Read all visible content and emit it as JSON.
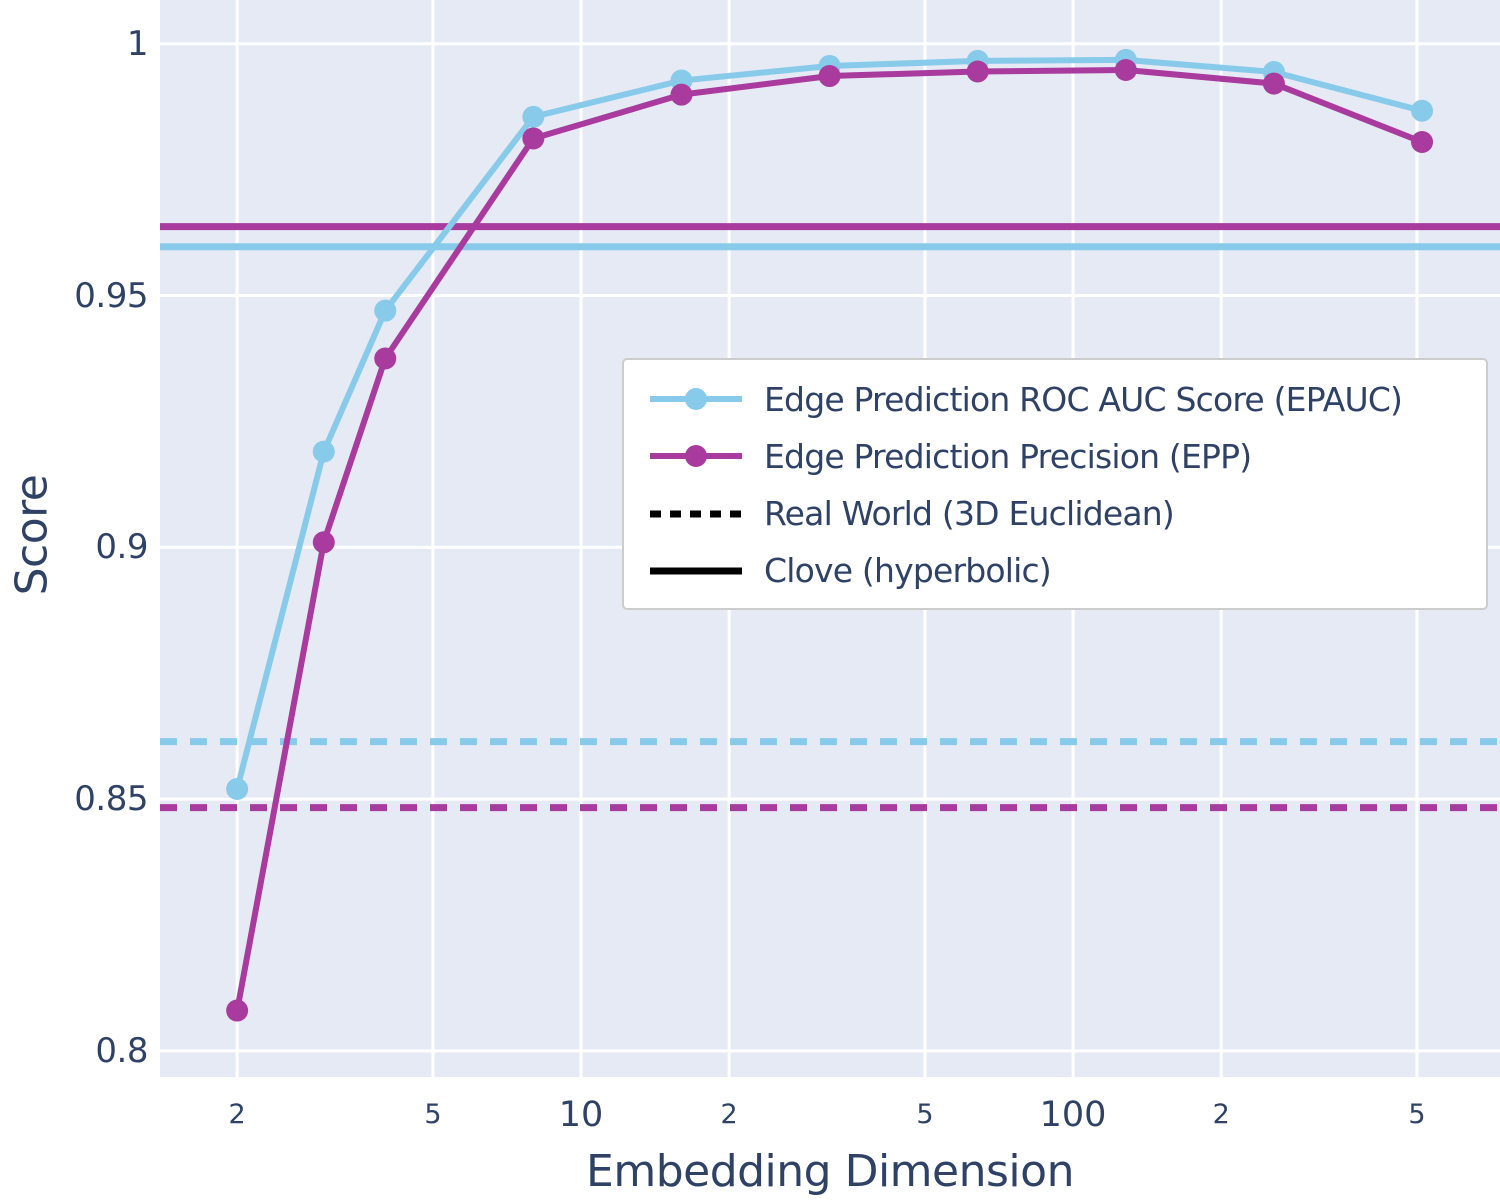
{
  "chart_data": {
    "type": "line",
    "title": "",
    "xlabel": "Embedding Dimension",
    "ylabel": "Score",
    "x_scale": "log",
    "xlim": [
      1.394,
      737.5
    ],
    "ylim": [
      0.7948,
      1.0087
    ],
    "grid": true,
    "x": [
      2,
      3,
      4,
      8,
      16,
      32,
      64,
      128,
      256,
      512
    ],
    "series": [
      {
        "name": "Edge Prediction ROC AUC Score (EPAUC)",
        "color": "#88CAE9",
        "marker": "circle",
        "values": [
          0.852,
          0.919,
          0.947,
          0.9855,
          0.9927,
          0.9956,
          0.9966,
          0.9968,
          0.9944,
          0.9867
        ]
      },
      {
        "name": "Edge Prediction Precision (EPP)",
        "color": "#A83B9D",
        "marker": "circle",
        "values": [
          0.808,
          0.901,
          0.9375,
          0.9812,
          0.9899,
          0.9936,
          0.9945,
          0.9948,
          0.9921,
          0.9805
        ]
      }
    ],
    "ref_lines": [
      {
        "name": "EPAUC Real World (3D Euclidean)",
        "value": 0.8614,
        "color": "#88CAE9",
        "style": "dotted"
      },
      {
        "name": "EPP Real World (3D Euclidean)",
        "value": 0.8483,
        "color": "#A83B9D",
        "style": "dotted"
      },
      {
        "name": "EPP Clove (hyperbolic)",
        "value": 0.9637,
        "color": "#A83B9D",
        "style": "solid"
      },
      {
        "name": "EPAUC Clove (hyperbolic)",
        "value": 0.9597,
        "color": "#88CAE9",
        "style": "solid"
      }
    ],
    "x_ticks": [
      {
        "value": 2,
        "label": "2",
        "major": false
      },
      {
        "value": 5,
        "label": "5",
        "major": false
      },
      {
        "value": 10,
        "label": "10",
        "major": true
      },
      {
        "value": 20,
        "label": "2",
        "major": false
      },
      {
        "value": 50,
        "label": "5",
        "major": false
      },
      {
        "value": 100,
        "label": "100",
        "major": true
      },
      {
        "value": 200,
        "label": "2",
        "major": false
      },
      {
        "value": 500,
        "label": "5",
        "major": false
      }
    ],
    "y_ticks": [
      {
        "value": 0.8,
        "label": "0.8"
      },
      {
        "value": 0.85,
        "label": "0.85"
      },
      {
        "value": 0.9,
        "label": "0.9"
      },
      {
        "value": 0.95,
        "label": "0.95"
      },
      {
        "value": 1.0,
        "label": "1"
      }
    ],
    "legend": {
      "position": "center-right",
      "entries": [
        {
          "label": "Edge Prediction ROC AUC Score (EPAUC)",
          "swatch": "line-marker",
          "color": "#88CAE9"
        },
        {
          "label": "Edge Prediction Precision (EPP)",
          "swatch": "line-marker",
          "color": "#A83B9D"
        },
        {
          "label": "Real World (3D Euclidean)",
          "swatch": "dotted-line",
          "color": "#000000"
        },
        {
          "label": "Clove (hyperbolic)",
          "swatch": "solid-line",
          "color": "#000000"
        }
      ]
    },
    "colors": {
      "plot_bg": "#E6EAF4",
      "grid": "#FFFFFF",
      "text": "#2F4266",
      "legend_border": "#CCCCCC"
    }
  }
}
